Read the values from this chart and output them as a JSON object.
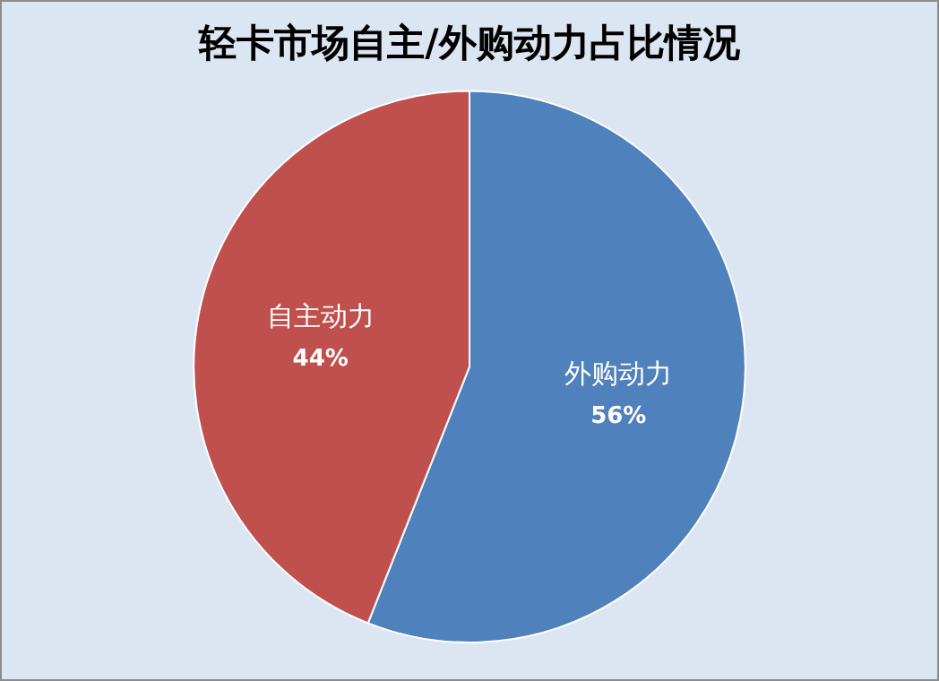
{
  "chart_data": {
    "type": "pie",
    "title": "轻卡市场自主/外购动力占比情况",
    "categories": [
      "外购动力",
      "自主动力"
    ],
    "values": [
      56,
      44
    ],
    "colors": [
      "#4f81bd",
      "#c0504d"
    ],
    "value_labels": [
      "56%",
      "44%"
    ],
    "legend": false
  }
}
